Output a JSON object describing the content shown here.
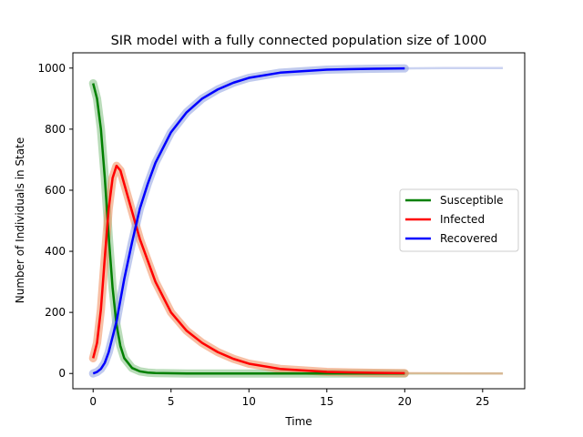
{
  "chart_data": {
    "type": "line",
    "title": "SIR model with a fully connected population size of 1000",
    "xlabel": "Time",
    "ylabel": "Number of Individuals in State",
    "xlim": [
      -1.3,
      27.7
    ],
    "ylim": [
      -50,
      1050
    ],
    "xticks": [
      0,
      5,
      10,
      15,
      20,
      25
    ],
    "yticks": [
      0,
      200,
      400,
      600,
      800,
      1000
    ],
    "legend": "center-right",
    "grid": false,
    "series": [
      {
        "name": "Susceptible",
        "color": "#008000",
        "band_color": "#7fbf7f",
        "x": [
          0,
          0.25,
          0.5,
          0.75,
          1.0,
          1.25,
          1.5,
          1.75,
          2.0,
          2.5,
          3.0,
          3.5,
          4.0,
          5.0,
          6.0,
          8.0,
          10.0,
          15.0,
          20.0
        ],
        "values": [
          950,
          900,
          800,
          640,
          450,
          280,
          160,
          90,
          50,
          18,
          7,
          3,
          1.5,
          0.5,
          0,
          0,
          0,
          0,
          0
        ],
        "band_x": [
          20.0,
          26.3
        ],
        "band_values": [
          0,
          0
        ]
      },
      {
        "name": "Infected",
        "color": "#ff0000",
        "band_color": "#f08a5a",
        "x": [
          0,
          0.25,
          0.5,
          0.75,
          1.0,
          1.25,
          1.5,
          1.75,
          2.0,
          2.5,
          3.0,
          3.5,
          4.0,
          5.0,
          6.0,
          7.0,
          8.0,
          9.0,
          10.0,
          12.0,
          15.0,
          18.0,
          20.0
        ],
        "values": [
          50,
          100,
          210,
          380,
          540,
          640,
          680,
          665,
          620,
          530,
          440,
          370,
          300,
          200,
          140,
          100,
          70,
          48,
          32,
          15,
          5,
          2,
          1
        ],
        "band_x": [
          20.0,
          22.5,
          26.3
        ],
        "band_values": [
          1,
          0.5,
          0
        ]
      },
      {
        "name": "Recovered",
        "color": "#0000ff",
        "band_color": "#8c9ee0",
        "x": [
          0,
          0.25,
          0.5,
          0.75,
          1.0,
          1.5,
          2.0,
          2.5,
          3.0,
          3.5,
          4.0,
          5.0,
          6.0,
          7.0,
          8.0,
          9.0,
          10.0,
          12.0,
          15.0,
          18.0,
          20.0
        ],
        "values": [
          0,
          5,
          15,
          35,
          70,
          170,
          310,
          430,
          540,
          620,
          690,
          790,
          855,
          900,
          930,
          952,
          968,
          985,
          995,
          998,
          999
        ],
        "band_x": [
          20.0,
          22.5,
          26.3
        ],
        "band_values": [
          999,
          1000,
          1000
        ]
      }
    ]
  }
}
